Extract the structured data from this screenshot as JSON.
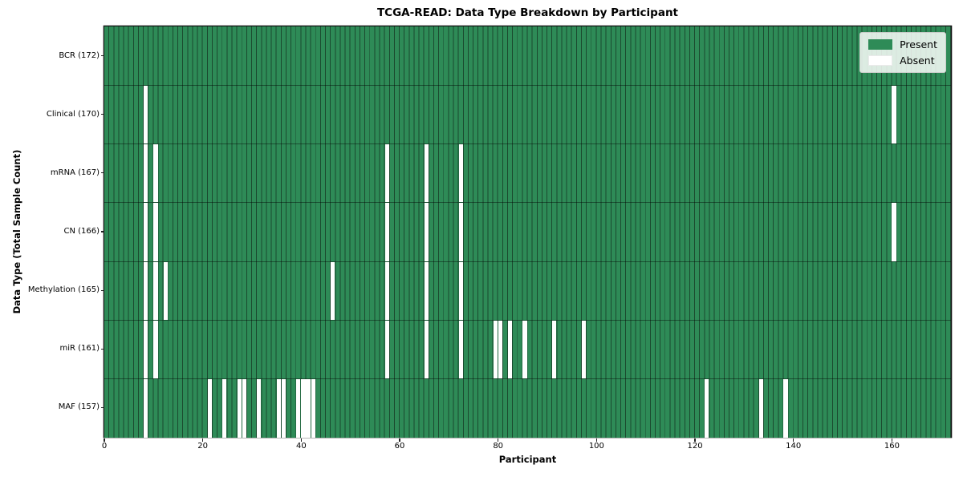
{
  "title": "TCGA-READ: Data Type Breakdown by Participant",
  "x_axis_label": "Participant",
  "y_axis_label": "Data Type (Total Sample Count)",
  "chart_data": {
    "type": "heatmap",
    "title": "TCGA-READ: Data Type Breakdown by Participant",
    "xlabel": "Participant",
    "ylabel": "Data Type (Total Sample Count)",
    "n_participants": 172,
    "xlim": [
      0,
      172
    ],
    "x_ticks": [
      0,
      20,
      40,
      60,
      80,
      100,
      120,
      140,
      160
    ],
    "grid": "vertical cell edges + horizontal row separators",
    "legend": [
      "Present",
      "Absent"
    ],
    "legend_position": "upper right",
    "colors": {
      "present": "#2e8b57",
      "absent": "#ffffff",
      "grid_line": "#1b4a2f",
      "row_separator": "rgba(0,0,0,0.42)"
    },
    "cell_semantics": "value 1 = Present (green), value 0 = Absent (white); all participants present except indices listed per row",
    "rows": [
      {
        "label": "BCR (172)",
        "total_samples": 172,
        "absent_participants": []
      },
      {
        "label": "Clinical (170)",
        "total_samples": 170,
        "absent_participants": [
          8,
          160
        ]
      },
      {
        "label": "mRNA (167)",
        "total_samples": 167,
        "absent_participants": [
          8,
          10,
          57,
          65,
          72
        ]
      },
      {
        "label": "CN (166)",
        "total_samples": 166,
        "absent_participants": [
          8,
          10,
          57,
          65,
          72,
          160
        ]
      },
      {
        "label": "Methylation (165)",
        "total_samples": 165,
        "absent_participants": [
          8,
          10,
          12,
          46,
          57,
          65,
          72
        ]
      },
      {
        "label": "miR (161)",
        "total_samples": 161,
        "absent_participants": [
          8,
          10,
          57,
          65,
          72,
          79,
          80,
          82,
          85,
          91,
          97
        ]
      },
      {
        "label": "MAF (157)",
        "total_samples": 157,
        "absent_participants": [
          8,
          21,
          24,
          27,
          28,
          31,
          35,
          36,
          39,
          40,
          41,
          42,
          122,
          133,
          138
        ]
      }
    ]
  }
}
